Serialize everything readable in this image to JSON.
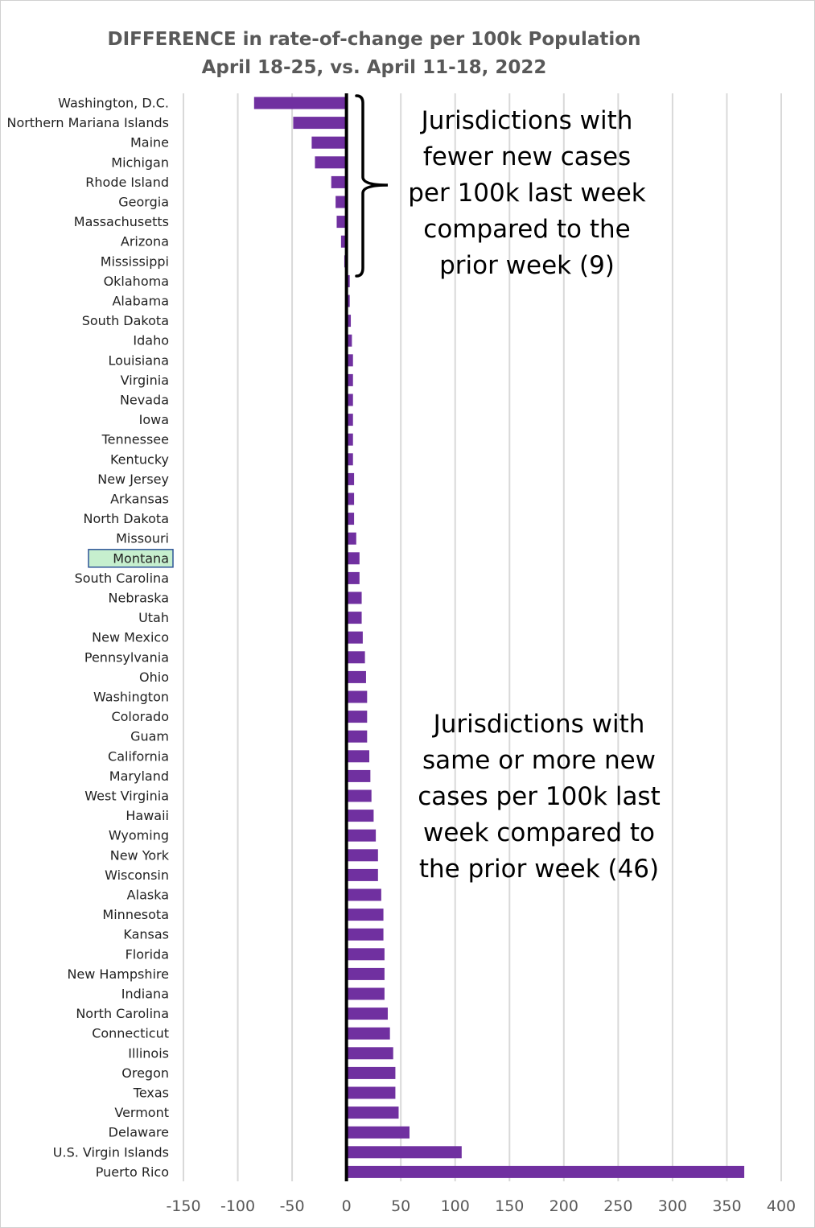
{
  "chart_data": {
    "type": "bar",
    "orientation": "horizontal",
    "title": "DIFFERENCE in rate-of-change per 100k Population",
    "subtitle": "April 18-25, vs. April 11-18, 2022",
    "xlabel": "",
    "ylabel": "",
    "xlim": [
      -150,
      400
    ],
    "xticks": [
      -150,
      -100,
      -50,
      0,
      50,
      100,
      150,
      200,
      250,
      300,
      350,
      400
    ],
    "grid": true,
    "bar_color": "#7030a0",
    "highlight_category": "Montana",
    "highlight_color": "#c6efce",
    "categories": [
      "Washington, D.C.",
      "Northern Mariana Islands",
      "Maine",
      "Michigan",
      "Rhode Island",
      "Georgia",
      "Massachusetts",
      "Arizona",
      "Mississippi",
      "Oklahoma",
      "Alabama",
      "South Dakota",
      "Idaho",
      "Louisiana",
      "Virginia",
      "Nevada",
      "Iowa",
      "Tennessee",
      "Kentucky",
      "New Jersey",
      "Arkansas",
      "North Dakota",
      "Missouri",
      "Montana",
      "South Carolina",
      "Nebraska",
      "Utah",
      "New Mexico",
      "Pennsylvania",
      "Ohio",
      "Washington",
      "Colorado",
      "Guam",
      "California",
      "Maryland",
      "West Virginia",
      "Hawaii",
      "Wyoming",
      "New York",
      "Wisconsin",
      "Alaska",
      "Minnesota",
      "Kansas",
      "Florida",
      "New Hampshire",
      "Indiana",
      "North Carolina",
      "Connecticut",
      "Illinois",
      "Oregon",
      "Texas",
      "Vermont",
      "Delaware",
      "U.S. Virgin Islands",
      "Puerto Rico"
    ],
    "values": [
      -85,
      -49,
      -32,
      -29,
      -14,
      -10,
      -9,
      -5,
      -2,
      3,
      3,
      4,
      5,
      6,
      6,
      6,
      6,
      6,
      6,
      7,
      7,
      7,
      9,
      12,
      12,
      14,
      14,
      15,
      17,
      18,
      19,
      19,
      19,
      21,
      22,
      23,
      25,
      27,
      29,
      29,
      32,
      34,
      34,
      35,
      35,
      35,
      38,
      40,
      43,
      45,
      45,
      48,
      58,
      106,
      366
    ],
    "annotations": [
      {
        "id": "fewer",
        "lines": [
          "Jurisdictions with",
          "fewer new cases",
          "per 100k last week",
          "compared to the",
          "prior week (9)"
        ]
      },
      {
        "id": "more",
        "lines": [
          "Jurisdictions with",
          "same or more new",
          "cases per 100k last",
          "week compared to",
          "the prior week (46)"
        ]
      }
    ]
  }
}
